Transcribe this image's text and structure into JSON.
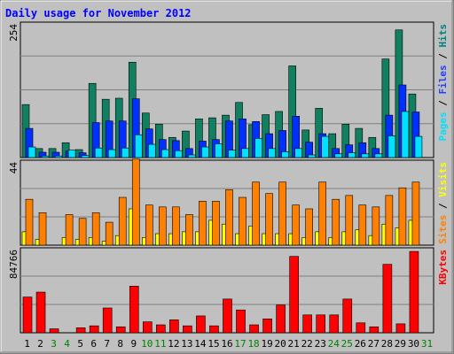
{
  "chart_data": {
    "type": "bar",
    "title": "Daily usage for November 2012",
    "categories": [
      "1",
      "2",
      "3",
      "4",
      "5",
      "6",
      "7",
      "8",
      "9",
      "10",
      "11",
      "12",
      "13",
      "14",
      "15",
      "16",
      "17",
      "18",
      "19",
      "20",
      "21",
      "22",
      "23",
      "24",
      "25",
      "26",
      "27",
      "28",
      "29",
      "30",
      "31"
    ],
    "weekend_days": [
      "3",
      "4",
      "10",
      "11",
      "17",
      "18",
      "24",
      "25",
      "31"
    ],
    "panels": [
      {
        "name": "hits-files-pages",
        "scale_max_label": "254",
        "ylim": [
          0,
          254
        ],
        "right_label_parts": [
          "Pages",
          " / ",
          "Files",
          " / ",
          "Hits"
        ],
        "right_label_colors": [
          "#00e0ff",
          "#000000",
          "#2040ff",
          "#000000",
          "#008080"
        ],
        "series": [
          {
            "name": "Hits",
            "color": "#108060",
            "values": [
              100,
              17,
              17,
              28,
              15,
              140,
              110,
              112,
              180,
              84,
              63,
              38,
              50,
              73,
              75,
              80,
              104,
              62,
              81,
              87,
              173,
              52,
              93,
              45,
              63,
              55,
              38,
              186,
              241,
              120,
              0
            ]
          },
          {
            "name": "Files",
            "color": "#0030ff",
            "values": [
              55,
              10,
              10,
              12,
              9,
              66,
              69,
              69,
              111,
              54,
              34,
              32,
              17,
              31,
              34,
              69,
              73,
              68,
              45,
              51,
              78,
              29,
              45,
              17,
              24,
              28,
              17,
              80,
              137,
              86,
              0
            ]
          },
          {
            "name": "Pages",
            "color": "#00e0ff",
            "values": [
              20,
              3,
              3,
              14,
              4,
              18,
              15,
              18,
              43,
              25,
              15,
              13,
              5,
              20,
              26,
              14,
              17,
              36,
              17,
              11,
              17,
              5,
              40,
              7,
              9,
              7,
              7,
              41,
              87,
              40,
              0
            ]
          }
        ]
      },
      {
        "name": "visits-sites",
        "scale_max_label": "44",
        "ylim": [
          0,
          44
        ],
        "right_label_parts": [
          "Sites",
          " / ",
          "Visits"
        ],
        "right_label_colors": [
          "#ff8000",
          "#000000",
          "#ffff00"
        ],
        "series": [
          {
            "name": "Visits",
            "color": "#ffff00",
            "values": [
              7,
              3,
              0,
              4,
              3,
              4,
              2,
              5,
              19,
              4,
              6,
              6,
              7,
              7,
              13,
              11,
              6,
              10,
              6,
              6,
              6,
              4,
              7,
              4,
              7,
              8,
              5,
              11,
              9,
              13,
              0
            ]
          },
          {
            "name": "Sites",
            "color": "#ff8000",
            "values": [
              24,
              17,
              0,
              16,
              14,
              17,
              12,
              25,
              45,
              21,
              20,
              20,
              16,
              23,
              23,
              29,
              25,
              33,
              27,
              33,
              21,
              19,
              33,
              24,
              26,
              21,
              20,
              26,
              30,
              33,
              0
            ]
          }
        ]
      },
      {
        "name": "kbytes",
        "scale_max_label": "84766",
        "ylim": [
          0,
          84766
        ],
        "right_label_parts": [
          "KBytes"
        ],
        "right_label_colors": [
          "#ff0000"
        ],
        "series": [
          {
            "name": "KBytes",
            "color": "#ff0000",
            "values": [
              36000,
              41000,
              4000,
              0,
              5000,
              7000,
              25000,
              6000,
              47000,
              11000,
              8000,
              13000,
              7000,
              17000,
              7000,
              34000,
              23000,
              8000,
              14000,
              28000,
              77000,
              18000,
              18000,
              18000,
              34000,
              10000,
              6000,
              69000,
              9000,
              82000,
              0
            ]
          }
        ]
      }
    ]
  }
}
